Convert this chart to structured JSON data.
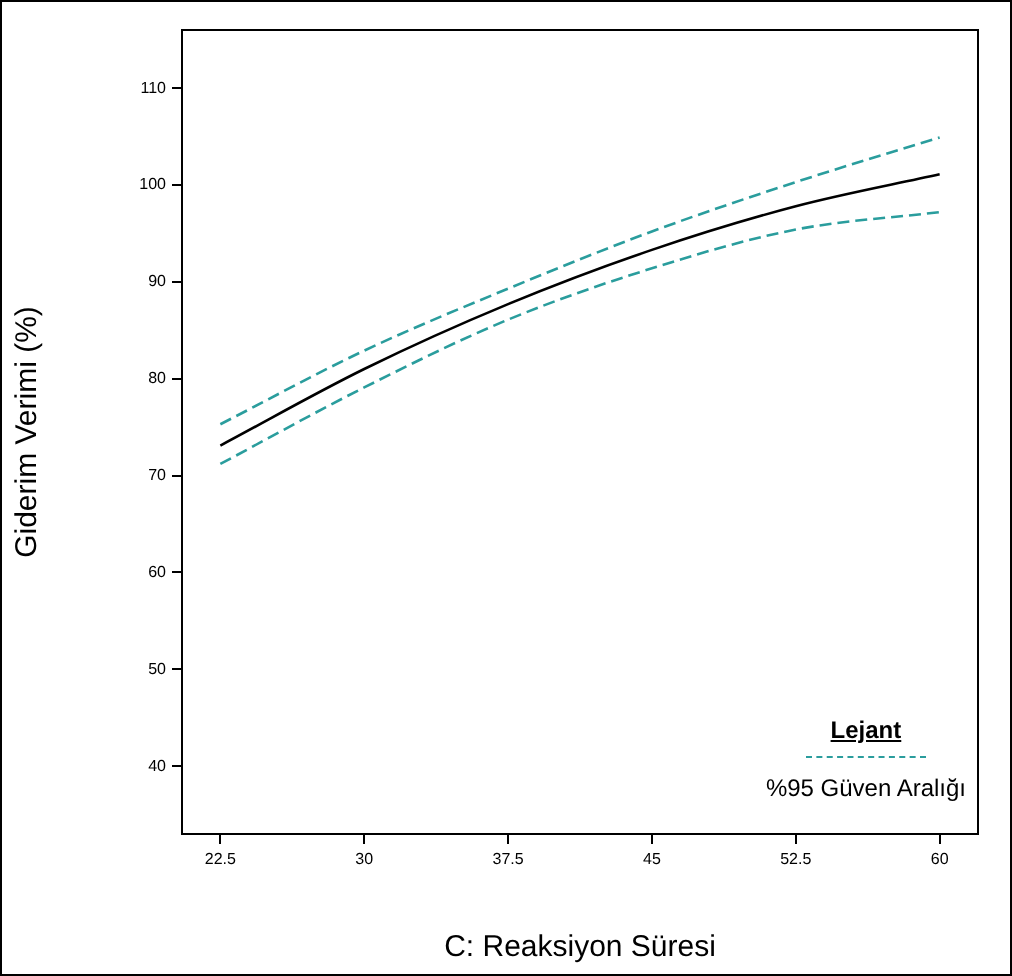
{
  "chart_data": {
    "type": "line",
    "xlabel": "C: Reaksiyon Süresi",
    "ylabel": "Giderim Verimi (%)",
    "legend_title": "Lejant",
    "x": [
      22.5,
      30,
      37.5,
      45,
      52.5,
      60
    ],
    "series": [
      {
        "color": "#000000",
        "line_style": "solid",
        "values": [
          73.1,
          81.0,
          87.7,
          93.3,
          97.8,
          101.1
        ]
      },
      {
        "name": "%95 Güven Aralığı",
        "color": "#2a9d9d",
        "line_style": "dashed",
        "values": [
          75.3,
          82.9,
          89.3,
          95.2,
          100.3,
          104.9
        ]
      },
      {
        "color": "#2a9d9d",
        "line_style": "dashed",
        "values": [
          71.2,
          79.1,
          86.1,
          91.4,
          95.4,
          97.2
        ]
      }
    ],
    "xlim": [
      20.5,
      62
    ],
    "xticks": [
      22.5,
      30,
      37.5,
      45,
      52.5,
      60
    ],
    "ylim": [
      33,
      116
    ],
    "yticks": [
      40,
      50,
      60,
      70,
      80,
      90,
      100,
      110
    ],
    "grid": false,
    "legend": "bottom right",
    "marker": "none"
  }
}
